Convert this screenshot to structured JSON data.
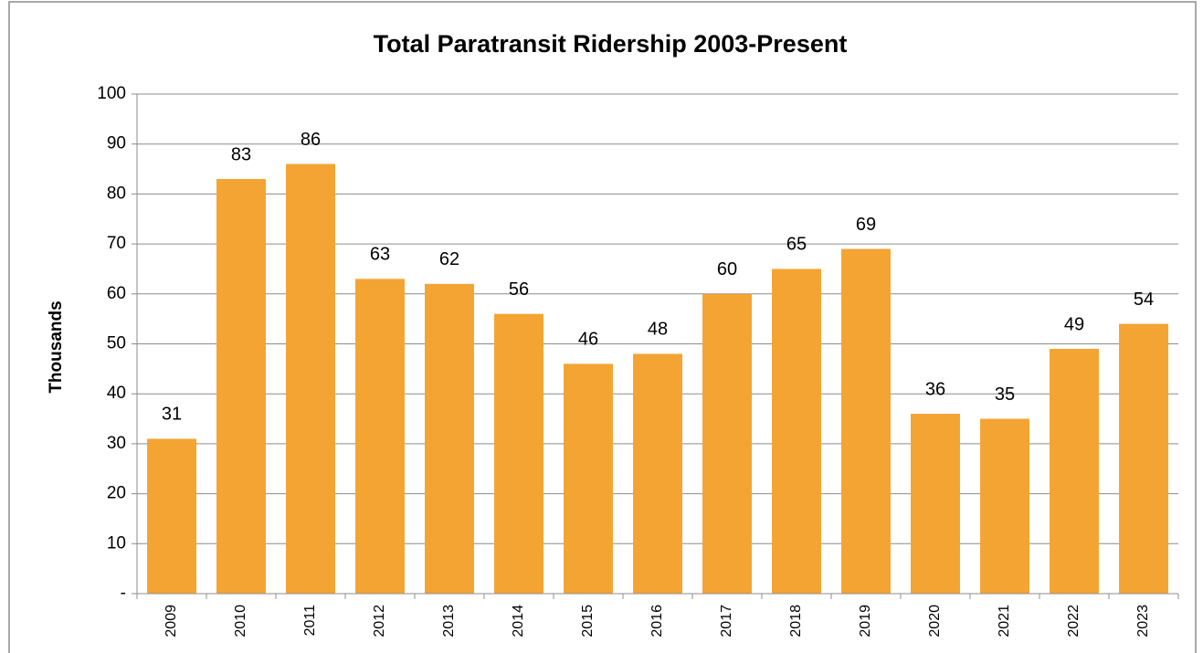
{
  "chart_data": {
    "type": "bar",
    "title": "Total Paratransit Ridership 2003-Present",
    "y_label": "Thousands",
    "categories": [
      "2009",
      "2010",
      "2011",
      "2012",
      "2013",
      "2014",
      "2015",
      "2016",
      "2017",
      "2018",
      "2019",
      "2020",
      "2021",
      "2022",
      "2023"
    ],
    "values": [
      31,
      83,
      86,
      63,
      62,
      56,
      46,
      48,
      60,
      65,
      69,
      36,
      35,
      49,
      54
    ],
    "color": "#f4a433",
    "ylim": [
      0,
      100
    ],
    "yticks": [
      {
        "value": 0,
        "label": "-"
      },
      10,
      20,
      30,
      40,
      50,
      60,
      70,
      80,
      90,
      100
    ],
    "grid": true
  }
}
